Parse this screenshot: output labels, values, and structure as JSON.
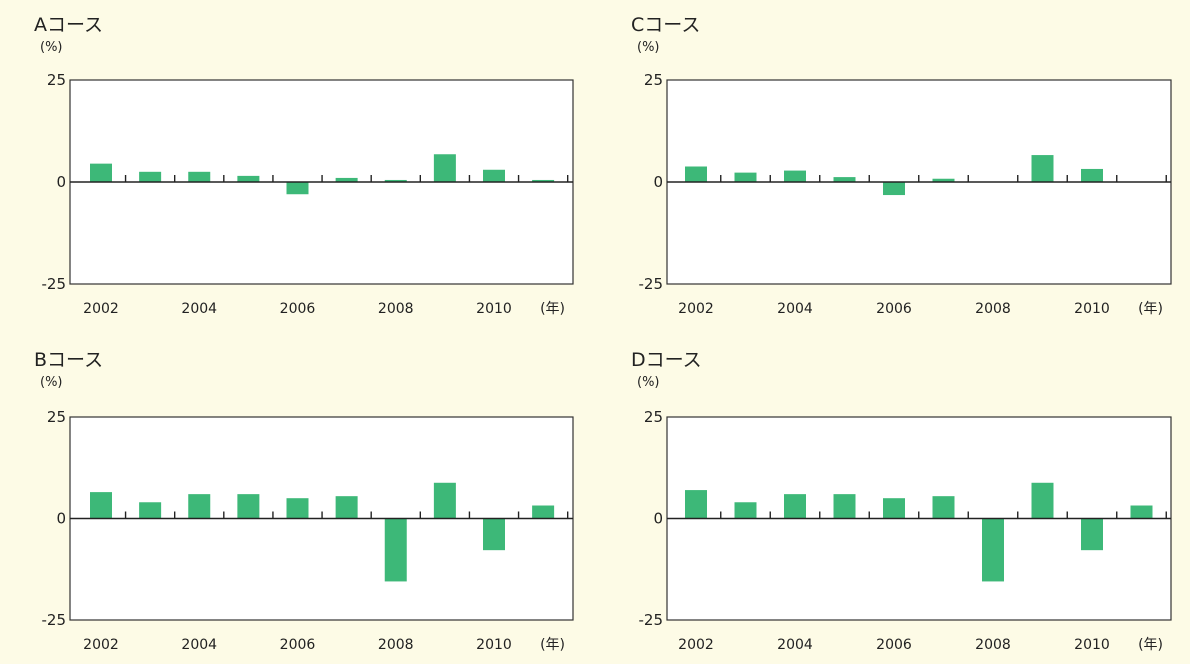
{
  "chart_data": [
    {
      "type": "bar",
      "title": "Aコース",
      "ylabel": "(%)",
      "xunit": "(年)",
      "ylim": [
        -25,
        25
      ],
      "yticks": [
        "25",
        "0",
        "-25"
      ],
      "x": [
        2002,
        2003,
        2004,
        2005,
        2006,
        2007,
        2008,
        2009,
        2010,
        2011
      ],
      "xticks": [
        "2002",
        "2004",
        "2006",
        "2008",
        "2010"
      ],
      "values": [
        4.5,
        2.5,
        2.5,
        1.5,
        -3.0,
        1.0,
        0.5,
        6.8,
        3.0,
        0.5
      ],
      "bar_color": "#3db878"
    },
    {
      "type": "bar",
      "title": "Cコース",
      "ylabel": "(%)",
      "xunit": "(年)",
      "ylim": [
        -25,
        25
      ],
      "yticks": [
        "25",
        "0",
        "-25"
      ],
      "x": [
        2002,
        2003,
        2004,
        2005,
        2006,
        2007,
        2008,
        2009,
        2010
      ],
      "xticks": [
        "2002",
        "2004",
        "2006",
        "2008",
        "2010"
      ],
      "values": [
        3.8,
        2.3,
        2.8,
        1.2,
        -3.2,
        0.8,
        0.0,
        6.6,
        3.2
      ],
      "bar_color": "#3db878"
    },
    {
      "type": "bar",
      "title": "Bコース",
      "ylabel": "(%)",
      "xunit": "(年)",
      "ylim": [
        -25,
        25
      ],
      "yticks": [
        "25",
        "0",
        "-25"
      ],
      "x": [
        2002,
        2003,
        2004,
        2005,
        2006,
        2007,
        2008,
        2009,
        2010,
        2011
      ],
      "xticks": [
        "2002",
        "2004",
        "2006",
        "2008",
        "2010"
      ],
      "values": [
        6.5,
        4.0,
        6.0,
        6.0,
        5.0,
        5.5,
        -15.5,
        8.8,
        -7.8,
        3.2
      ],
      "bar_color": "#3db878"
    },
    {
      "type": "bar",
      "title": "Dコース",
      "ylabel": "(%)",
      "xunit": "(年)",
      "ylim": [
        -25,
        25
      ],
      "yticks": [
        "25",
        "0",
        "-25"
      ],
      "x": [
        2002,
        2003,
        2004,
        2005,
        2006,
        2007,
        2008,
        2009,
        2010,
        2011
      ],
      "xticks": [
        "2002",
        "2004",
        "2006",
        "2008",
        "2010"
      ],
      "values": [
        7.0,
        4.0,
        6.0,
        6.0,
        5.0,
        5.5,
        -15.5,
        8.8,
        -7.8,
        3.2
      ],
      "bar_color": "#3db878"
    }
  ]
}
